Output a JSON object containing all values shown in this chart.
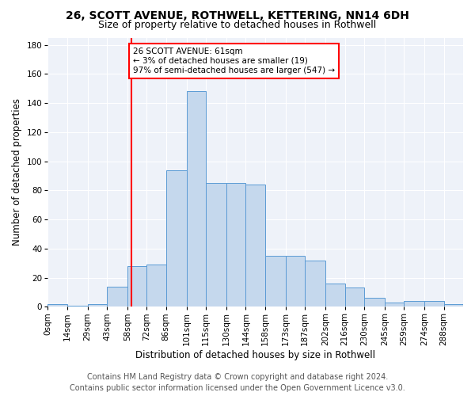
{
  "title1": "26, SCOTT AVENUE, ROTHWELL, KETTERING, NN14 6DH",
  "title2": "Size of property relative to detached houses in Rothwell",
  "xlabel": "Distribution of detached houses by size in Rothwell",
  "ylabel": "Number of detached properties",
  "bar_labels": [
    "0sqm",
    "14sqm",
    "29sqm",
    "43sqm",
    "58sqm",
    "72sqm",
    "86sqm",
    "101sqm",
    "115sqm",
    "130sqm",
    "144sqm",
    "158sqm",
    "173sqm",
    "187sqm",
    "202sqm",
    "216sqm",
    "230sqm",
    "245sqm",
    "259sqm",
    "274sqm",
    "288sqm"
  ],
  "bar_values": [
    2,
    1,
    2,
    14,
    28,
    29,
    94,
    148,
    85,
    85,
    84,
    35,
    35,
    32,
    16,
    13,
    6,
    3,
    4,
    4,
    2
  ],
  "bar_color": "#c5d8ed",
  "bar_edge_color": "#5b9bd5",
  "vline_x": 61,
  "vline_color": "red",
  "annotation_text": "26 SCOTT AVENUE: 61sqm\n← 3% of detached houses are smaller (19)\n97% of semi-detached houses are larger (547) →",
  "annotation_box_color": "white",
  "annotation_box_edge_color": "red",
  "ylim": [
    0,
    185
  ],
  "yticks": [
    0,
    20,
    40,
    60,
    80,
    100,
    120,
    140,
    160,
    180
  ],
  "bin_edges": [
    0,
    14,
    29,
    43,
    58,
    72,
    86,
    101,
    115,
    130,
    144,
    158,
    173,
    187,
    202,
    216,
    230,
    245,
    259,
    274,
    288,
    302
  ],
  "footer1": "Contains HM Land Registry data © Crown copyright and database right 2024.",
  "footer2": "Contains public sector information licensed under the Open Government Licence v3.0.",
  "background_color": "#eef2f9",
  "title1_fontsize": 10,
  "title2_fontsize": 9,
  "xlabel_fontsize": 8.5,
  "ylabel_fontsize": 8.5,
  "tick_fontsize": 7.5,
  "annotation_fontsize": 7.5,
  "footer_fontsize": 7
}
